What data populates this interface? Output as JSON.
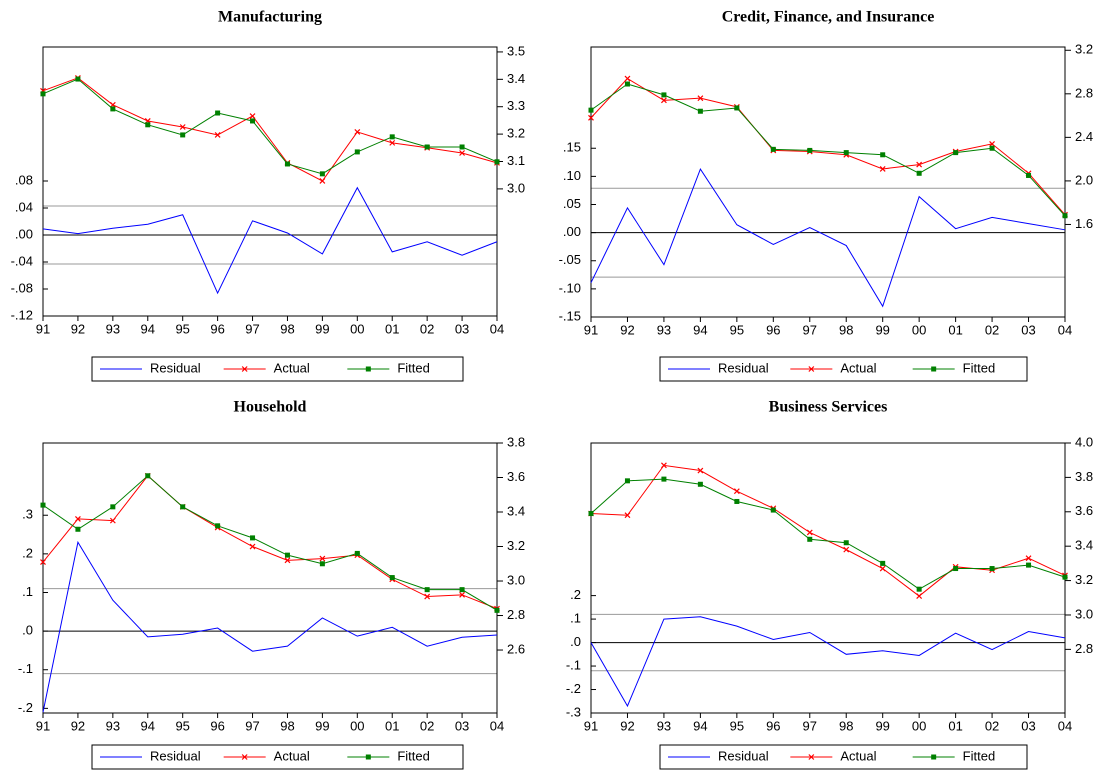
{
  "chart_data": [
    {
      "type": "line",
      "title": "Manufacturing",
      "categories": [
        "91",
        "92",
        "93",
        "94",
        "95",
        "96",
        "97",
        "98",
        "99",
        "00",
        "01",
        "02",
        "03",
        "04"
      ],
      "series": [
        {
          "name": "Residual",
          "color": "#0000ff",
          "marker": "none",
          "axis": "y",
          "values": [
            0.009,
            0.002,
            0.01,
            0.016,
            0.03,
            -0.086,
            0.021,
            0.003,
            -0.028,
            0.07,
            -0.025,
            -0.01,
            -0.03,
            -0.01
          ]
        },
        {
          "name": "Actual",
          "color": "#ff0000",
          "marker": "x",
          "axis": "y2",
          "values": [
            3.358,
            3.405,
            3.307,
            3.248,
            3.226,
            3.197,
            3.266,
            3.095,
            3.029,
            3.208,
            3.168,
            3.15,
            3.131,
            3.095
          ]
        },
        {
          "name": "Fitted",
          "color": "#008000",
          "marker": "square",
          "axis": "y2",
          "values": [
            3.347,
            3.401,
            3.292,
            3.234,
            3.197,
            3.277,
            3.248,
            3.091,
            3.055,
            3.135,
            3.19,
            3.153,
            3.153,
            3.099
          ]
        }
      ],
      "reference_lines": [
        0.043,
        -0.043
      ],
      "ylim": [
        -0.12,
        0.2785
      ],
      "yticks": [
        {
          "value": 0.08,
          "label": ".08"
        },
        {
          "value": 0.04,
          "label": ".04"
        },
        {
          "value": 0,
          "label": ".00"
        },
        {
          "value": -0.04,
          "label": "-.04"
        },
        {
          "value": -0.08,
          "label": "-.08"
        },
        {
          "value": -0.12,
          "label": "-.12"
        }
      ],
      "y2lim": [
        2.536,
        3.518
      ],
      "y2ticks": [
        3.5,
        3.4,
        3.3,
        3.2,
        3.1,
        {
          "value": 3,
          "label": "3.0"
        }
      ],
      "legend": "bottom"
    },
    {
      "type": "line",
      "title": "Credit, Finance, and Insurance",
      "categories": [
        "91",
        "92",
        "93",
        "94",
        "95",
        "96",
        "97",
        "98",
        "99",
        "00",
        "01",
        "02",
        "03",
        "04"
      ],
      "series": [
        {
          "name": "Residual",
          "color": "#0000ff",
          "marker": "none",
          "axis": "y",
          "values": [
            -0.089,
            0.044,
            -0.057,
            0.113,
            0.014,
            -0.021,
            0.009,
            -0.023,
            -0.131,
            0.064,
            0.007,
            0.027,
            0.016,
            0.005
          ]
        },
        {
          "name": "Actual",
          "color": "#ff0000",
          "marker": "x",
          "axis": "y2",
          "values": [
            2.58,
            2.94,
            2.74,
            2.76,
            2.68,
            2.28,
            2.27,
            2.24,
            2.11,
            2.15,
            2.27,
            2.34,
            2.07,
            1.69
          ]
        },
        {
          "name": "Fitted",
          "color": "#008000",
          "marker": "square",
          "axis": "y2",
          "values": [
            2.65,
            2.89,
            2.79,
            2.64,
            2.67,
            2.29,
            2.28,
            2.26,
            2.24,
            2.07,
            2.26,
            2.3,
            2.05,
            1.68
          ]
        }
      ],
      "reference_lines": [
        0.079,
        -0.079
      ],
      "ylim": [
        -0.15,
        0.33
      ],
      "yticks": [
        {
          "value": 0.15,
          "label": ".15"
        },
        {
          "value": 0.1,
          "label": ".10"
        },
        {
          "value": 0.05,
          "label": ".05"
        },
        {
          "value": 0,
          "label": ".00"
        },
        {
          "value": -0.05,
          "label": "-.05"
        },
        {
          "value": -0.1,
          "label": "-.10"
        },
        {
          "value": -0.15,
          "label": "-.15"
        }
      ],
      "y2lim": [
        0.75,
        3.23
      ],
      "y2ticks": [
        3.2,
        2.8,
        2.4,
        {
          "value": 2,
          "label": "2.0"
        },
        1.6
      ],
      "legend": "bottom"
    },
    {
      "type": "line",
      "title": "Household",
      "categories": [
        "91",
        "92",
        "93",
        "94",
        "95",
        "96",
        "97",
        "98",
        "99",
        "00",
        "01",
        "02",
        "03",
        "04"
      ],
      "series": [
        {
          "name": "Residual",
          "color": "#0000ff",
          "marker": "none",
          "axis": "y",
          "values": [
            -0.21,
            0.23,
            0.08,
            -0.015,
            -0.008,
            0.008,
            -0.052,
            -0.039,
            0.034,
            -0.013,
            0.01,
            -0.039,
            -0.016,
            -0.01
          ]
        },
        {
          "name": "Actual",
          "color": "#ff0000",
          "marker": "x",
          "axis": "y2",
          "values": [
            3.11,
            3.36,
            3.35,
            3.61,
            3.43,
            3.31,
            3.2,
            3.12,
            3.13,
            3.15,
            3.01,
            2.91,
            2.92,
            2.84
          ]
        },
        {
          "name": "Fitted",
          "color": "#008000",
          "marker": "square",
          "axis": "y2",
          "values": [
            3.44,
            3.3,
            3.43,
            3.61,
            3.43,
            3.32,
            3.25,
            3.15,
            3.1,
            3.16,
            3.02,
            2.95,
            2.95,
            2.83
          ]
        }
      ],
      "reference_lines": [
        0.11,
        -0.11
      ],
      "ylim": [
        -0.212,
        0.487
      ],
      "yticks": [
        {
          "value": 0.3,
          "label": ".3"
        },
        {
          "value": 0.2,
          "label": ".2"
        },
        {
          "value": 0.1,
          "label": ".1"
        },
        {
          "value": 0,
          "label": ".0"
        },
        {
          "value": -0.1,
          "label": "-.1"
        },
        {
          "value": -0.2,
          "label": "-.2"
        }
      ],
      "y2lim": [
        2.235,
        3.8
      ],
      "y2ticks": [
        3.8,
        3.6,
        3.4,
        3.2,
        {
          "value": 3,
          "label": "3.0"
        },
        2.8,
        2.6
      ],
      "legend": "bottom"
    },
    {
      "type": "line",
      "title": "Business Services",
      "categories": [
        "91",
        "92",
        "93",
        "94",
        "95",
        "96",
        "97",
        "98",
        "99",
        "00",
        "01",
        "02",
        "03",
        "04"
      ],
      "series": [
        {
          "name": "Residual",
          "color": "#0000ff",
          "marker": "none",
          "axis": "y",
          "values": [
            0.0,
            -0.27,
            0.1,
            0.11,
            0.07,
            0.013,
            0.043,
            -0.05,
            -0.035,
            -0.055,
            0.04,
            -0.03,
            0.047,
            0.02
          ]
        },
        {
          "name": "Actual",
          "color": "#ff0000",
          "marker": "x",
          "axis": "y2",
          "values": [
            3.59,
            3.58,
            3.87,
            3.84,
            3.72,
            3.62,
            3.48,
            3.38,
            3.27,
            3.11,
            3.28,
            3.26,
            3.33,
            3.23
          ]
        },
        {
          "name": "Fitted",
          "color": "#008000",
          "marker": "square",
          "axis": "y2",
          "values": [
            3.59,
            3.78,
            3.79,
            3.76,
            3.66,
            3.61,
            3.44,
            3.42,
            3.3,
            3.15,
            3.27,
            3.27,
            3.29,
            3.22
          ]
        }
      ],
      "reference_lines": [
        0.12,
        -0.12
      ],
      "ylim": [
        -0.3,
        0.85
      ],
      "yticks": [
        {
          "value": 0.2,
          "label": ".2"
        },
        {
          "value": 0.1,
          "label": ".1"
        },
        {
          "value": 0,
          "label": ".0"
        },
        {
          "value": -0.1,
          "label": "-.1"
        },
        {
          "value": -0.2,
          "label": "-.2"
        },
        {
          "value": -0.3,
          "label": "-.3"
        }
      ],
      "y2lim": [
        2.43,
        4.0
      ],
      "y2ticks": [
        {
          "value": 4,
          "label": "4.0"
        },
        3.8,
        3.6,
        3.4,
        3.2,
        {
          "value": 3,
          "label": "3.0"
        },
        2.8
      ],
      "legend": "bottom"
    }
  ]
}
